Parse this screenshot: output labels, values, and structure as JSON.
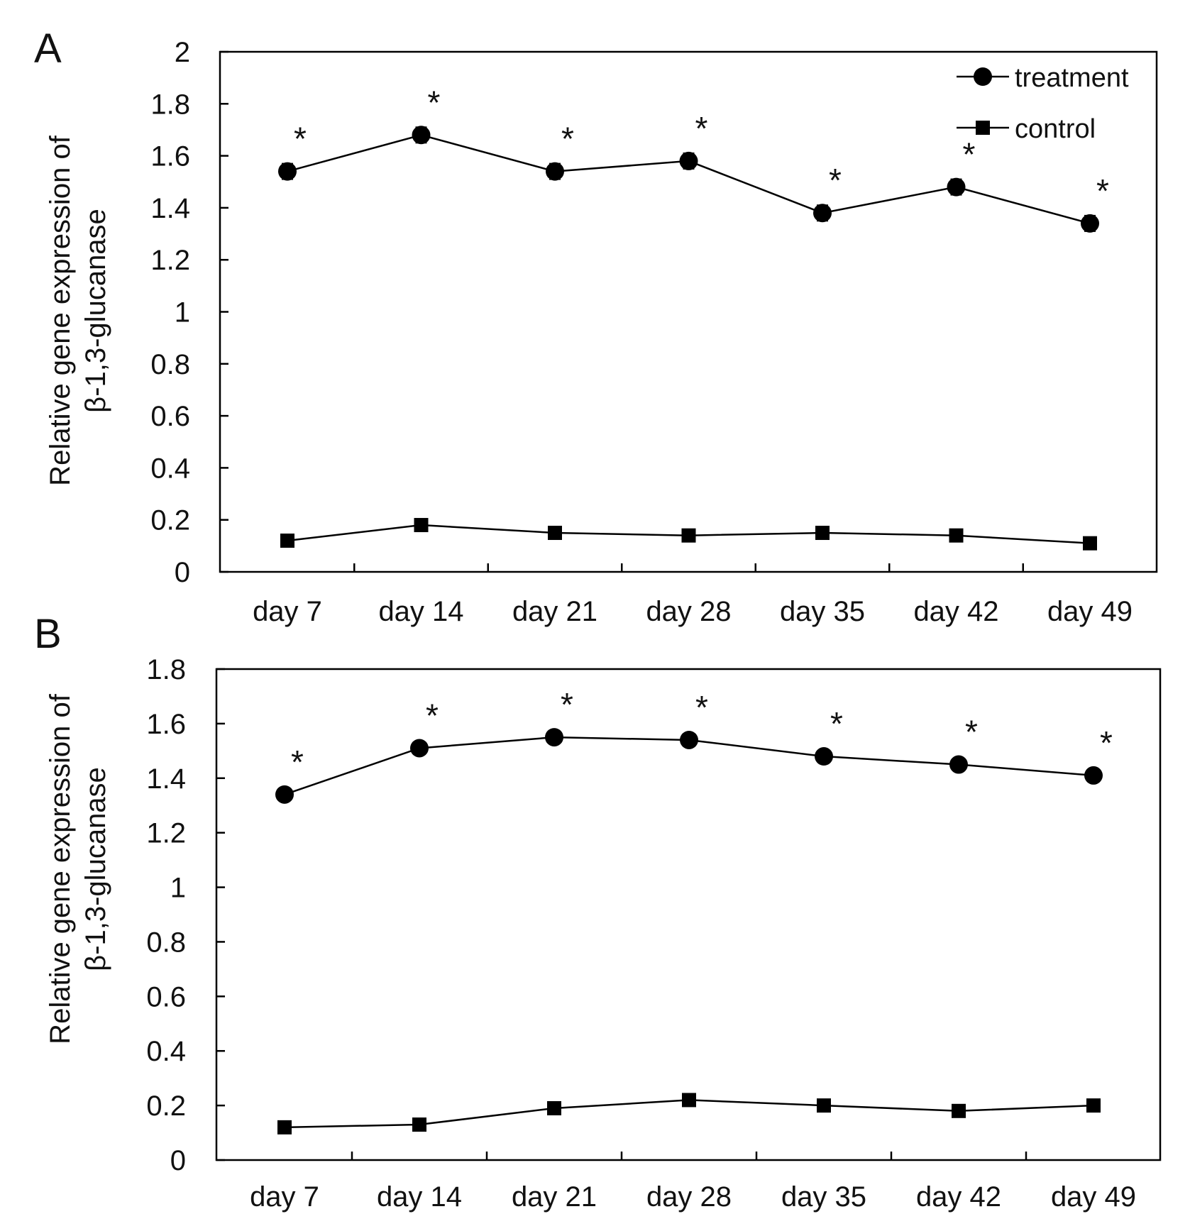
{
  "chart_data": [
    {
      "type": "line",
      "panel_label": "A",
      "ylabel_line1": "Relative gene expression of",
      "ylabel_line2": "β-1,3-glucanase",
      "xlabel": "",
      "ylim": [
        0,
        2
      ],
      "yticks": [
        "0",
        "0.2",
        "0.4",
        "0.6",
        "0.8",
        "1",
        "1.2",
        "1.4",
        "1.6",
        "1.8",
        "2"
      ],
      "categories": [
        "day 7",
        "day 14",
        "day 21",
        "day 28",
        "day 35",
        "day 42",
        "day 49"
      ],
      "legend_position": "top-right",
      "series": [
        {
          "name": "treatment",
          "marker": "circle",
          "values": [
            1.54,
            1.68,
            1.54,
            1.58,
            1.38,
            1.48,
            1.34
          ],
          "error": [
            0.03,
            0.03,
            0.03,
            0.03,
            0.03,
            0.03,
            0.03
          ],
          "significance": [
            "*",
            "*",
            "*",
            "*",
            "*",
            "*",
            "*"
          ]
        },
        {
          "name": "control",
          "marker": "square",
          "values": [
            0.12,
            0.18,
            0.15,
            0.14,
            0.15,
            0.14,
            0.11
          ]
        }
      ]
    },
    {
      "type": "line",
      "panel_label": "B",
      "ylabel_line1": "Relative gene expression of",
      "ylabel_line2": "β-1,3-glucanase",
      "xlabel": "",
      "ylim": [
        0,
        1.8
      ],
      "yticks": [
        "0",
        "0.2",
        "0.4",
        "0.6",
        "0.8",
        "1",
        "1.2",
        "1.4",
        "1.6",
        "1.8"
      ],
      "categories": [
        "day 7",
        "day 14",
        "day 21",
        "day 28",
        "day 35",
        "day 42",
        "day 49"
      ],
      "legend_position": "none",
      "series": [
        {
          "name": "treatment",
          "marker": "circle",
          "values": [
            1.34,
            1.51,
            1.55,
            1.54,
            1.48,
            1.45,
            1.41
          ],
          "significance": [
            "*",
            "*",
            "*",
            "*",
            "*",
            "*",
            "*"
          ]
        },
        {
          "name": "control",
          "marker": "square",
          "values": [
            0.12,
            0.13,
            0.19,
            0.22,
            0.2,
            0.18,
            0.2
          ]
        }
      ]
    }
  ]
}
